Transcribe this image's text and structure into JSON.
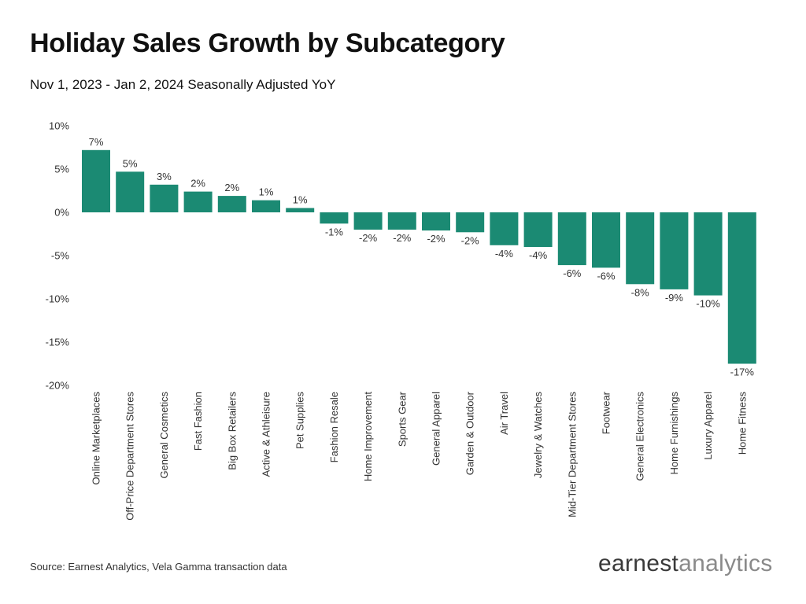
{
  "header": {
    "title": "Holiday Sales Growth by Subcategory",
    "subtitle": "Nov 1, 2023 - Jan 2, 2024 Seasonally Adjusted YoY"
  },
  "footer": {
    "source": "Source: Earnest Analytics, Vela Gamma transaction data",
    "logo_part1": "earnest",
    "logo_part2": "analytics"
  },
  "colors": {
    "bar": "#1b8a73",
    "text": "#333333"
  },
  "chart_data": {
    "type": "bar",
    "title": "Holiday Sales Growth by Subcategory",
    "subtitle": "Nov 1, 2023 - Jan 2, 2024 Seasonally Adjusted YoY",
    "xlabel": "",
    "ylabel": "",
    "ylim": [
      -20,
      10
    ],
    "yticks": [
      10,
      5,
      0,
      -5,
      -10,
      -15,
      -20
    ],
    "ytick_labels": [
      "10%",
      "5%",
      "0%",
      "-5%",
      "-10%",
      "-15%",
      "-20%"
    ],
    "grid": false,
    "categories": [
      "Online Marketplaces",
      "Off-Price Department Stores",
      "General Cosmetics",
      "Fast Fashion",
      "Big Box Retailers",
      "Active & Athleisure",
      "Pet Supplies",
      "Fashion Resale",
      "Home Improvement",
      "Sports Gear",
      "General Apparel",
      "Garden & Outdoor",
      "Air Travel",
      "Jewelry & Watches",
      "Mid-Tier Department Stores",
      "Footwear",
      "General Electronics",
      "Home Furnishings",
      "Luxury Apparel",
      "Home Fitness"
    ],
    "values": [
      7.2,
      4.7,
      3.2,
      2.4,
      1.9,
      1.4,
      0.5,
      -1.3,
      -2.0,
      -2.0,
      -2.1,
      -2.3,
      -3.8,
      -4.0,
      -6.1,
      -6.4,
      -8.3,
      -8.9,
      -9.6,
      -17.5
    ],
    "data_labels": [
      "7%",
      "5%",
      "3%",
      "2%",
      "2%",
      "1%",
      "1%",
      "-1%",
      "-2%",
      "-2%",
      "-2%",
      "-2%",
      "-4%",
      "-4%",
      "-6%",
      "-6%",
      "-8%",
      "-9%",
      "-10%",
      "-17%"
    ]
  }
}
